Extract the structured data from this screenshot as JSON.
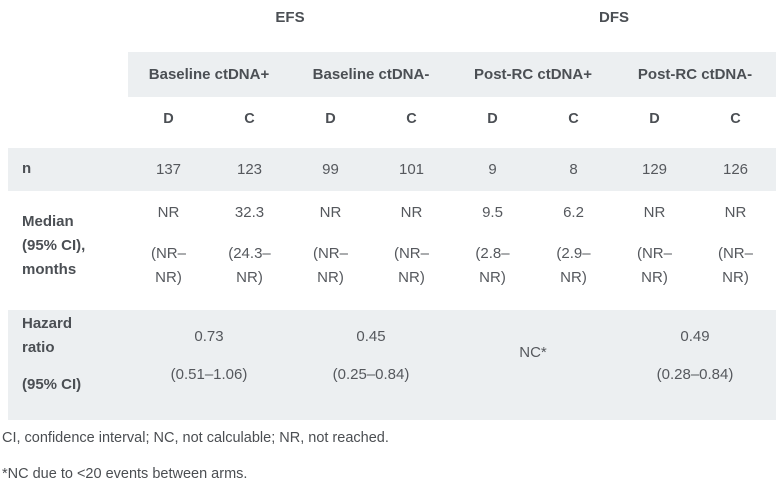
{
  "colors": {
    "row_band": "#eceff1",
    "header_text": "#4b4f54",
    "body_text": "#55585d",
    "background": "#ffffff"
  },
  "table": {
    "survival_groups": {
      "efs": "EFS",
      "dfs": "DFS"
    },
    "subgroups": [
      {
        "label": "Baseline ctDNA+"
      },
      {
        "label": "Baseline ctDNA-"
      },
      {
        "label": "Post-RC ctDNA+"
      },
      {
        "label": "Post-RC ctDNA-"
      }
    ],
    "arms": [
      "D",
      "C",
      "D",
      "C",
      "D",
      "C",
      "D",
      "C"
    ],
    "rows": {
      "n": {
        "label": "n",
        "values": [
          "137",
          "123",
          "99",
          "101",
          "9",
          "8",
          "129",
          "126"
        ]
      },
      "median": {
        "label": "Median (95% CI), months",
        "cells": [
          {
            "value": "NR",
            "ci": "(NR–\nNR)"
          },
          {
            "value": "32.3",
            "ci": "(24.3–\nNR)"
          },
          {
            "value": "NR",
            "ci": "(NR–\nNR)"
          },
          {
            "value": "NR",
            "ci": "(NR–\nNR)"
          },
          {
            "value": "9.5",
            "ci": "(2.8–\nNR)"
          },
          {
            "value": "6.2",
            "ci": "(2.9–\nNR)"
          },
          {
            "value": "NR",
            "ci": "(NR–\nNR)"
          },
          {
            "value": "NR",
            "ci": "(NR–\nNR)"
          }
        ]
      },
      "hazard": {
        "label": "Hazard ratio",
        "label2": "(95% CI)",
        "cells": [
          {
            "value": "0.73",
            "ci": "(0.51–1.06)"
          },
          {
            "value": "0.45",
            "ci": "(0.25–0.84)"
          },
          {
            "value": "NC*",
            "ci": ""
          },
          {
            "value": "0.49",
            "ci": "(0.28–0.84)"
          }
        ]
      }
    }
  },
  "footnotes": [
    "CI, confidence interval; NC, not calculable; NR, not reached.",
    "*NC due to <20 events between arms."
  ]
}
